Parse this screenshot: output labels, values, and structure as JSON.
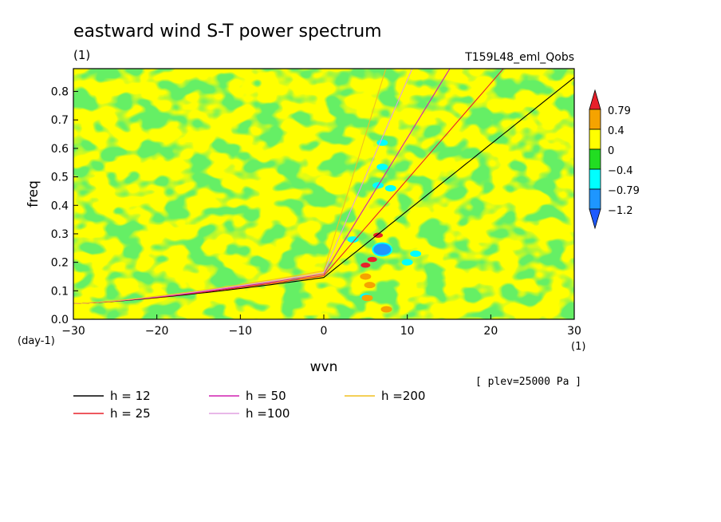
{
  "chart_data": {
    "type": "heatmap",
    "title": "eastward wind S-T power spectrum",
    "subtitle": "(1)",
    "run_label": "T159L48_eml_Qobs",
    "xlabel": "wvn",
    "x_unit": "(1)",
    "ylabel": "freq",
    "y_unit": "(day-1)",
    "xlim": [
      -30,
      30
    ],
    "ylim": [
      0,
      0.88
    ],
    "x_ticks": [
      "−30",
      "−20",
      "−10",
      "0",
      "10",
      "20",
      "30"
    ],
    "y_ticks": [
      "0.0",
      "0.1",
      "0.2",
      "0.3",
      "0.4",
      "0.5",
      "0.6",
      "0.7",
      "0.8"
    ],
    "y_tick_values": [
      0,
      0.1,
      0.2,
      0.3,
      0.4,
      0.5,
      0.6,
      0.7,
      0.8
    ],
    "x_tick_values": [
      -30,
      -20,
      -10,
      0,
      10,
      20,
      30
    ],
    "level_note": "[ plev=25000 Pa ]",
    "colorbar": {
      "labels": [
        "0.79",
        "0.4",
        "0",
        "−0.4",
        "−0.79",
        "−1.2"
      ],
      "colors": [
        "#e8202a",
        "#f5a300",
        "#ffff00",
        "#22dd22",
        "#00ffff",
        "#1e96ff",
        "#1e5aff"
      ]
    },
    "field_colors": {
      "background": "#ffff00",
      "negative": "#22dd22",
      "strong_negative": "#00ffff",
      "strongest_negative": "#1e96ff",
      "positive": "#f5a300",
      "strong_positive": "#e8202a"
    },
    "series": [
      {
        "name": "h = 12",
        "h": 12,
        "color": "#000000"
      },
      {
        "name": "h = 25",
        "h": 25,
        "color": "#e8202a"
      },
      {
        "name": "h = 50",
        "h": 50,
        "color": "#d020b0"
      },
      {
        "name": "h =100",
        "h": 100,
        "color": "#e0a0e0"
      },
      {
        "name": "h =200",
        "h": 200,
        "color": "#f0c020"
      }
    ],
    "dispersion_offset_freq": 0.055,
    "anomalies": [
      {
        "x": 7,
        "y": 0.245,
        "kind": "strongest_negative"
      },
      {
        "x": 7,
        "y": 0.535,
        "kind": "strong_negative"
      },
      {
        "x": 7,
        "y": 0.62,
        "kind": "strong_negative"
      },
      {
        "x": 6.5,
        "y": 0.47,
        "kind": "strong_negative"
      },
      {
        "x": 8,
        "y": 0.46,
        "kind": "strong_negative"
      },
      {
        "x": 3.5,
        "y": 0.28,
        "kind": "strong_negative"
      },
      {
        "x": 5,
        "y": 0.08,
        "kind": "strong_negative"
      },
      {
        "x": 11,
        "y": 0.23,
        "kind": "strong_negative"
      },
      {
        "x": 10,
        "y": 0.2,
        "kind": "strong_negative"
      },
      {
        "x": 6.5,
        "y": 0.295,
        "kind": "strong_positive"
      },
      {
        "x": 5,
        "y": 0.19,
        "kind": "strong_positive"
      },
      {
        "x": 5.8,
        "y": 0.21,
        "kind": "strong_positive"
      },
      {
        "x": 5,
        "y": 0.15,
        "kind": "positive"
      },
      {
        "x": 5.5,
        "y": 0.12,
        "kind": "positive"
      },
      {
        "x": 5.2,
        "y": 0.075,
        "kind": "positive"
      },
      {
        "x": 7.5,
        "y": 0.035,
        "kind": "positive"
      }
    ],
    "grid": false,
    "legend_position": "bottom-left"
  }
}
